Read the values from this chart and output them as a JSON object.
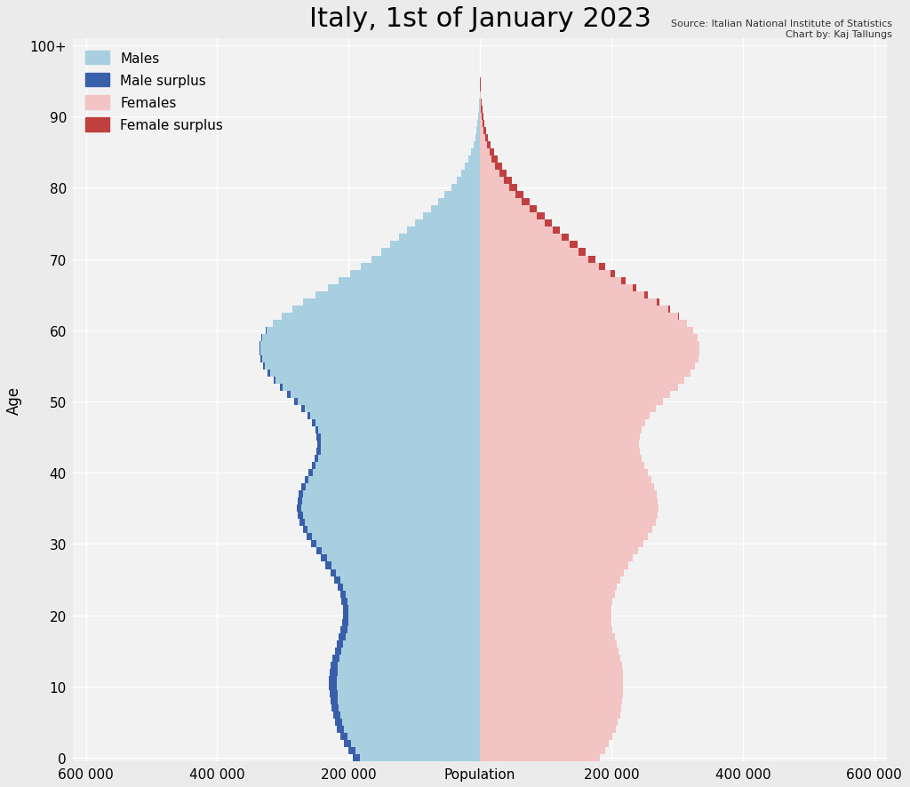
{
  "title": "Italy, 1st of January 2023",
  "source_text": "Source: Italian National Institute of Statistics\nChart by: Kaj Tallungs",
  "xlabel": "Population",
  "ylabel": "Age",
  "xlim": 620000,
  "ylim_max": 101,
  "background_color": "#ebebeb",
  "plot_bg_color": "#f2f2f2",
  "color_male": "#a8cfe0",
  "color_male_surplus": "#3a5faa",
  "color_female": "#f2c4c4",
  "color_female_surplus": "#c04040",
  "ages": [
    0,
    1,
    2,
    3,
    4,
    5,
    6,
    7,
    8,
    9,
    10,
    11,
    12,
    13,
    14,
    15,
    16,
    17,
    18,
    19,
    20,
    21,
    22,
    23,
    24,
    25,
    26,
    27,
    28,
    29,
    30,
    31,
    32,
    33,
    34,
    35,
    36,
    37,
    38,
    39,
    40,
    41,
    42,
    43,
    44,
    45,
    46,
    47,
    48,
    49,
    50,
    51,
    52,
    53,
    54,
    55,
    56,
    57,
    58,
    59,
    60,
    61,
    62,
    63,
    64,
    65,
    66,
    67,
    68,
    69,
    70,
    71,
    72,
    73,
    74,
    75,
    76,
    77,
    78,
    79,
    80,
    81,
    82,
    83,
    84,
    85,
    86,
    87,
    88,
    89,
    90,
    91,
    92,
    93,
    94,
    95,
    96,
    97,
    98,
    99,
    100
  ],
  "males": [
    193000,
    200000,
    207000,
    213000,
    218000,
    221000,
    224000,
    226000,
    228000,
    229000,
    230000,
    230000,
    229000,
    227000,
    225000,
    221000,
    218000,
    215000,
    212000,
    210000,
    209000,
    209000,
    211000,
    213000,
    217000,
    222000,
    228000,
    235000,
    242000,
    249000,
    257000,
    264000,
    270000,
    275000,
    278000,
    279000,
    278000,
    276000,
    272000,
    267000,
    261000,
    256000,
    252000,
    249000,
    248000,
    249000,
    251000,
    256000,
    263000,
    272000,
    283000,
    294000,
    305000,
    314000,
    323000,
    330000,
    334000,
    336000,
    336000,
    333000,
    326000,
    315000,
    302000,
    286000,
    269000,
    250000,
    232000,
    215000,
    198000,
    181000,
    165000,
    150000,
    137000,
    124000,
    111000,
    99000,
    87000,
    75000,
    64000,
    54000,
    44000,
    36000,
    29000,
    23000,
    18000,
    14000,
    10000,
    7500,
    5500,
    3800,
    2600,
    1700,
    1100,
    700,
    420,
    240,
    130,
    65,
    30,
    12,
    8
  ],
  "females": [
    183000,
    190000,
    196000,
    202000,
    207000,
    210000,
    213000,
    215000,
    216000,
    217000,
    218000,
    218000,
    217000,
    216000,
    214000,
    211000,
    208000,
    205000,
    202000,
    200000,
    200000,
    200000,
    202000,
    205000,
    208000,
    213000,
    219000,
    226000,
    233000,
    241000,
    249000,
    256000,
    262000,
    267000,
    270000,
    272000,
    271000,
    269000,
    265000,
    261000,
    255000,
    250000,
    246000,
    243000,
    242000,
    243000,
    246000,
    251000,
    258000,
    267000,
    278000,
    289000,
    301000,
    311000,
    320000,
    327000,
    332000,
    334000,
    334000,
    331000,
    325000,
    315000,
    303000,
    289000,
    273000,
    256000,
    238000,
    222000,
    206000,
    190000,
    175000,
    161000,
    148000,
    135000,
    122000,
    110000,
    98000,
    87000,
    76000,
    66000,
    57000,
    48000,
    40000,
    33000,
    27000,
    21000,
    16000,
    12000,
    9000,
    6500,
    4600,
    3200,
    2100,
    1400,
    860,
    510,
    290,
    150,
    68,
    27,
    18
  ],
  "xtick_positions": [
    -600000,
    -400000,
    -200000,
    0,
    200000,
    400000,
    600000
  ],
  "xtick_labels": [
    "600 000",
    "400 000",
    "200 000",
    "Population",
    "200 000",
    "400 000",
    "600 000"
  ],
  "ytick_positions": [
    0,
    10,
    20,
    30,
    40,
    50,
    60,
    70,
    80,
    90,
    100
  ],
  "ytick_labels": [
    "0",
    "10",
    "20",
    "30",
    "40",
    "50",
    "60",
    "70",
    "80",
    "90",
    "100+"
  ]
}
